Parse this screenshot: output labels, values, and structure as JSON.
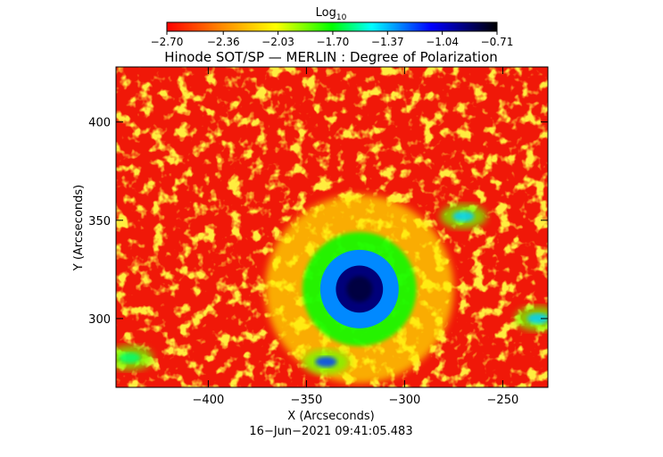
{
  "chart_data": {
    "type": "heatmap",
    "title": "Hinode SOT/SP — MERLIN : Degree of Polarization",
    "xlabel": "X (Arcseconds)",
    "ylabel": "Y (Arcseconds)",
    "xlim": [
      -447,
      -227
    ],
    "ylim": [
      265,
      428
    ],
    "x_ticks": [
      -400,
      -350,
      -300,
      -250
    ],
    "x_tick_labels": [
      "−400",
      "−350",
      "−300",
      "−250"
    ],
    "y_ticks": [
      300,
      350,
      400
    ],
    "y_tick_labels": [
      "300",
      "350",
      "400"
    ],
    "colorbar": {
      "label_base": "Log",
      "label_subscript": "10",
      "ticks": [
        -2.7,
        -2.36,
        -2.03,
        -1.7,
        -1.37,
        -1.04,
        -0.71
      ],
      "tick_labels": [
        "−2.70",
        "−2.36",
        "−2.03",
        "−1.70",
        "−1.37",
        "−1.04",
        "−0.71"
      ],
      "range": [
        -2.7,
        -0.71
      ],
      "colors": [
        "#ff0000",
        "#ff8800",
        "#ffff00",
        "#00ff00",
        "#00ffff",
        "#0000ff",
        "#000000"
      ]
    },
    "features": [
      {
        "type": "sunspot",
        "x": -323,
        "y": 315,
        "radius": 12,
        "log10_value": -0.9
      },
      {
        "type": "penumbra",
        "x": -323,
        "y": 315,
        "radius": 20,
        "log10_value": -1.3
      },
      {
        "type": "plage_region",
        "x": -270,
        "y": 352,
        "log10_value": -1.4
      },
      {
        "type": "plage_region",
        "x": -340,
        "y": 278,
        "log10_value": -1.2
      },
      {
        "type": "plage_region",
        "x": -232,
        "y": 300,
        "log10_value": -1.4
      },
      {
        "type": "plage_region",
        "x": -440,
        "y": 280,
        "log10_value": -1.6
      }
    ],
    "grid": false,
    "legend": "colorbar-top"
  },
  "timestamp": "16−Jun−2021 09:41:05.483"
}
